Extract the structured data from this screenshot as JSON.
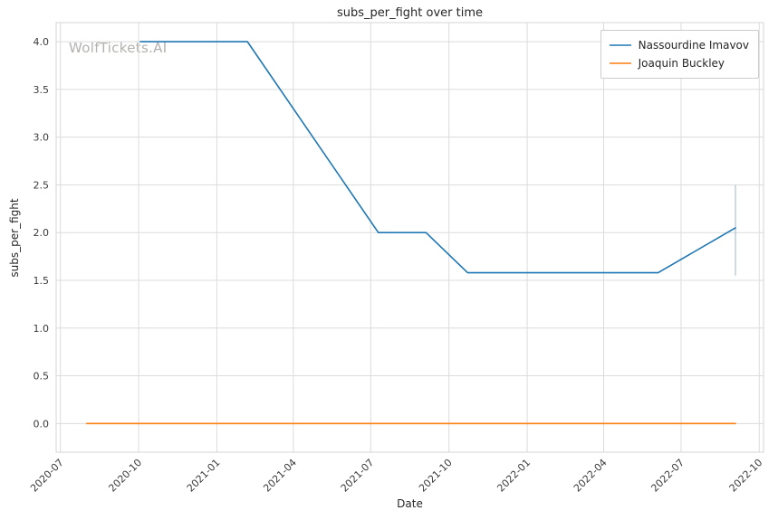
{
  "chart_data": {
    "type": "line",
    "title": "subs_per_fight over time",
    "xlabel": "Date",
    "ylabel": "subs_per_fight",
    "watermark": "WolfTickets.AI",
    "grid": true,
    "legend_position": "upper right",
    "x_ticks": [
      "2020-07",
      "2020-10",
      "2021-01",
      "2021-04",
      "2021-07",
      "2021-10",
      "2022-01",
      "2022-04",
      "2022-07",
      "2022-10"
    ],
    "y_ticks": [
      0.0,
      0.5,
      1.0,
      1.5,
      2.0,
      2.5,
      3.0,
      3.5,
      4.0
    ],
    "xlim": [
      "2020-06-26",
      "2022-10-06"
    ],
    "ylim": [
      -0.3,
      4.2
    ],
    "colors": {
      "grid": "#dcdcdc",
      "axes_border": "#d4d4d4",
      "tick_text": "#3b3b3b"
    },
    "series": [
      {
        "name": "Nassourdine Imavov",
        "color": "#1f77b4",
        "points": [
          [
            "2020-10-03",
            4.0
          ],
          [
            "2021-02-06",
            4.0
          ],
          [
            "2021-07-10",
            2.0
          ],
          [
            "2021-09-04",
            2.0
          ],
          [
            "2021-10-23",
            1.58
          ],
          [
            "2022-06-04",
            1.58
          ],
          [
            "2022-09-03",
            2.05
          ]
        ]
      },
      {
        "name": "Joaquin Buckley",
        "color": "#ff7f0e",
        "points": [
          [
            "2020-08-01",
            0.0
          ],
          [
            "2022-09-03",
            0.0
          ]
        ]
      }
    ],
    "error_bar": {
      "x": "2022-09-03",
      "y_low": 1.55,
      "y_high": 2.5,
      "color": "#aec3d1"
    }
  }
}
